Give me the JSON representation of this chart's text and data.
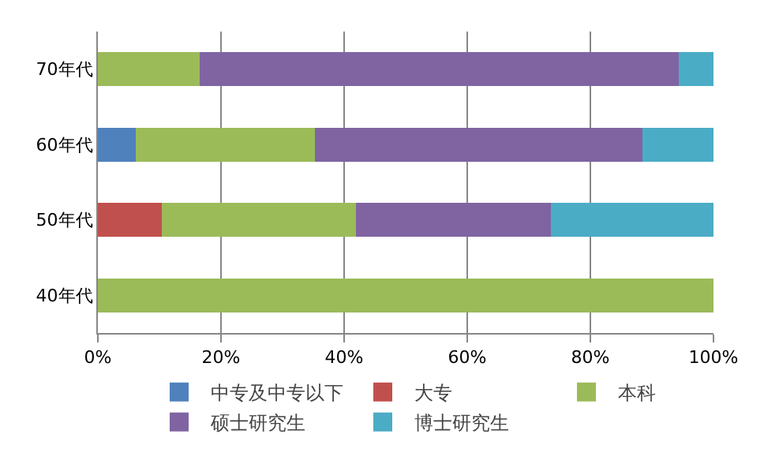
{
  "chart_data": {
    "type": "bar",
    "orientation": "horizontal",
    "stacked": true,
    "categories": [
      "70年代",
      "60年代",
      "50年代",
      "40年代"
    ],
    "series": [
      {
        "name": "中专及中专以下",
        "color": "#4f81bd",
        "values": [
          null,
          6.2,
          null,
          null
        ]
      },
      {
        "name": "大专",
        "color": "#c0504d",
        "values": [
          null,
          null,
          10.4,
          null
        ]
      },
      {
        "name": "本科",
        "color": "#9bbb59",
        "values": [
          16.5,
          29,
          31.5,
          100
        ]
      },
      {
        "name": "硕士研究生",
        "color": "#8064a2",
        "values": [
          77.8,
          53.2,
          31.7,
          null
        ]
      },
      {
        "name": "博士研究生",
        "color": "#4bacc6",
        "values": [
          5.7,
          11.6,
          26.4,
          null
        ]
      }
    ],
    "xlim": [
      0,
      100
    ],
    "xticks": [
      {
        "value": 0,
        "label": "0%"
      },
      {
        "value": 20,
        "label": "20%"
      },
      {
        "value": 40,
        "label": "40%"
      },
      {
        "value": 60,
        "label": "60%"
      },
      {
        "value": 80,
        "label": "80%"
      },
      {
        "value": 100,
        "label": "100%"
      }
    ],
    "grid": "x",
    "legend": "bottom"
  }
}
